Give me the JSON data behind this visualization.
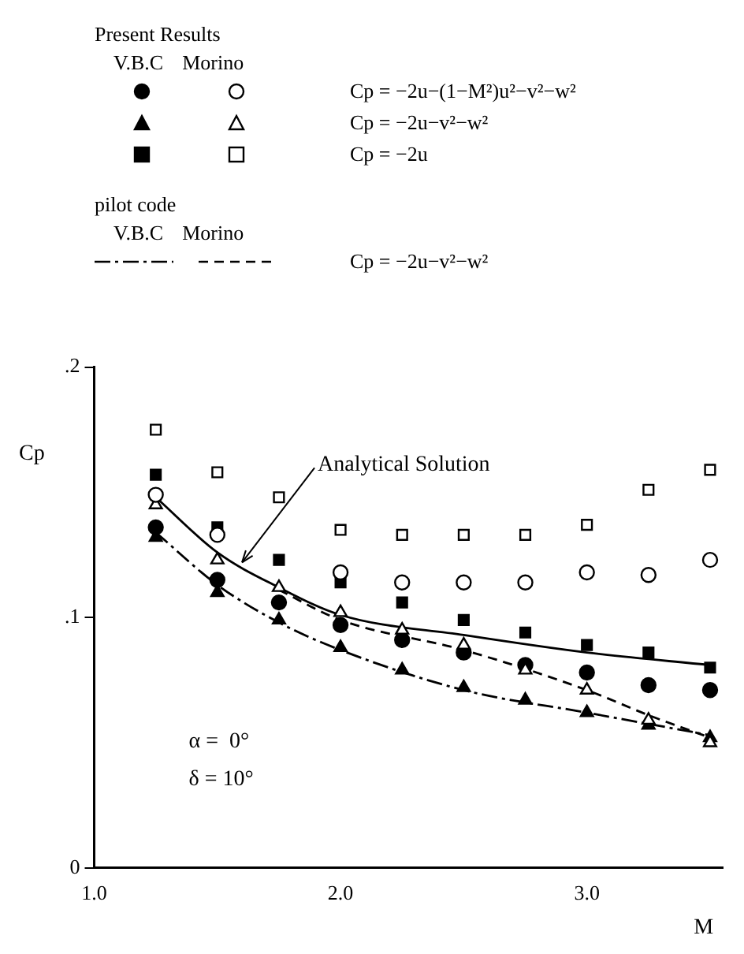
{
  "chart_data": {
    "type": "scatter",
    "xlabel": "M",
    "ylabel": "Cp",
    "x": [
      1.25,
      1.5,
      1.75,
      2.0,
      2.25,
      2.5,
      2.75,
      3.0,
      3.25,
      3.5
    ],
    "xlim": [
      1.0,
      3.55
    ],
    "xticks": [
      {
        "value": 1.0,
        "label": "1.0"
      },
      {
        "value": 2.0,
        "label": "2.0"
      },
      {
        "value": 3.0,
        "label": "3.0"
      }
    ],
    "ylim": [
      0,
      0.2
    ],
    "yticks": [
      0,
      {
        "value": 0.1,
        "label": ".1"
      },
      {
        "value": 0.2,
        "label": ".2"
      }
    ],
    "series": [
      {
        "type": "scatter",
        "marker": "circle",
        "color": "#000000",
        "values": [
          0.136,
          0.115,
          0.106,
          0.097,
          0.091,
          0.086,
          0.081,
          0.078,
          0.073,
          0.071
        ]
      },
      {
        "type": "scatter",
        "marker": "circle",
        "color": "#000000",
        "values": [
          0.149,
          0.133,
          null,
          0.118,
          0.114,
          0.114,
          0.114,
          0.118,
          0.117,
          0.123
        ]
      },
      {
        "type": "scatter",
        "marker": "triangle",
        "color": "#000000",
        "values": [
          0.132,
          0.11,
          0.099,
          0.088,
          0.079,
          0.072,
          0.067,
          0.062,
          0.057,
          0.052
        ]
      },
      {
        "type": "scatter",
        "marker": "triangle",
        "color": "#000000",
        "values": [
          0.145,
          0.123,
          0.112,
          0.102,
          0.095,
          0.089,
          0.079,
          0.071,
          0.059,
          0.05
        ]
      },
      {
        "type": "scatter",
        "marker": "square",
        "color": "#000000",
        "values": [
          0.157,
          0.136,
          0.123,
          0.114,
          0.106,
          0.099,
          0.094,
          0.089,
          0.086,
          0.08
        ]
      },
      {
        "type": "scatter",
        "marker": "square",
        "color": "#000000",
        "values": [
          0.175,
          0.158,
          0.148,
          0.135,
          0.133,
          0.133,
          0.133,
          0.137,
          0.151,
          0.159
        ]
      },
      {
        "type": "line",
        "line_style": "dashdot",
        "color": "#000000",
        "x": [
          1.25,
          1.5,
          1.75,
          2.0,
          2.5,
          3.0,
          3.5
        ],
        "values": [
          0.134,
          0.113,
          0.098,
          0.087,
          0.071,
          0.062,
          0.053
        ]
      },
      {
        "type": "line",
        "line_style": "dashed",
        "color": "#000000",
        "x": [
          1.75,
          2.0,
          2.5,
          3.0,
          3.25,
          3.5
        ],
        "values": [
          0.111,
          0.099,
          0.087,
          0.071,
          0.061,
          0.052
        ]
      },
      {
        "type": "line",
        "line_style": "solid",
        "color": "#000000",
        "x": [
          1.25,
          1.5,
          1.75,
          2.0,
          2.5,
          3.0,
          3.5
        ],
        "values": [
          0.148,
          0.126,
          0.112,
          0.101,
          0.093,
          0.086,
          0.081
        ]
      }
    ],
    "annotations": [
      "Present Results",
      "V.B.C",
      "Morino",
      "Cp = −2u−(1−M²)u²−v²−w²",
      "Cp = −2u−v²−w²",
      "Cp = −2u",
      "pilot code",
      "V.B.C",
      "Morino",
      "Cp = −2u−v²−w²",
      {
        "text": "Analytical Solution",
        "x": 1.6,
        "y": 0.122
      },
      "α =  0°",
      "δ = 10°"
    ]
  }
}
